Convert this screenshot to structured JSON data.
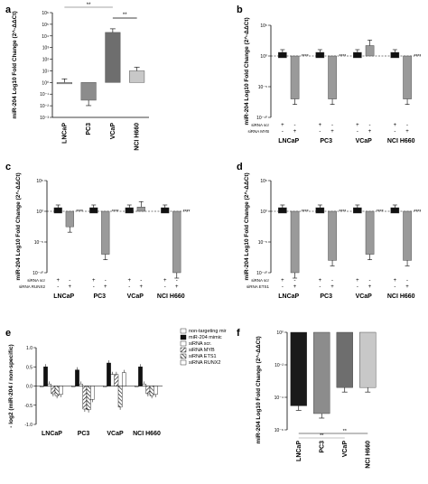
{
  "chart_data": [
    {
      "panel": "a",
      "type": "bar",
      "ylabel": "miR-204 Log10 Fold Change (2^-ΔΔCt)",
      "yscale": "log",
      "ylim": [
        0.001,
        1000000
      ],
      "yticks": [
        "10⁻³",
        "10⁻²",
        "10⁻¹",
        "10⁰",
        "10¹",
        "10²",
        "10³",
        "10⁴",
        "10⁵",
        "10⁶"
      ],
      "categories": [
        "LNCaP",
        "PC3",
        "VCaP",
        "NCI H660"
      ],
      "values": [
        1,
        0.03,
        20000,
        10
      ],
      "bar_colors": [
        "#b0b0b0",
        "#8c8c8c",
        "#6e6e6e",
        "#c8c8c8"
      ],
      "significance": [
        "**",
        "**"
      ]
    },
    {
      "panel": "b",
      "type": "bar",
      "ylabel": "miR-204 Log10 Fold Change (2^-ΔΔCt)",
      "yscale": "log",
      "yticks": [
        "10⁵",
        "10⁰",
        "10⁻⁵",
        "10⁻¹⁰"
      ],
      "categories": [
        "LNCaP",
        "PC3",
        "VCaP",
        "NCI H660"
      ],
      "row_labels": [
        "siRNA scr",
        "siRNA MYB"
      ],
      "series": [
        {
          "name": "siRNA scr",
          "values": [
            1,
            1,
            1,
            1
          ]
        },
        {
          "name": "siRNA MYB",
          "values": [
            1e-07,
            1e-07,
            50,
            1e-07
          ]
        }
      ],
      "stars": [
        "****",
        "****",
        "",
        "****"
      ]
    },
    {
      "panel": "c",
      "type": "bar",
      "ylabel": "miR-204 Log10 Fold Change (2^-ΔΔCt)",
      "yscale": "log",
      "yticks": [
        "10⁵",
        "10⁰",
        "10⁻⁵",
        "10⁻¹⁰"
      ],
      "categories": [
        "LNCaP",
        "PC3",
        "VCaP",
        "NCI H660"
      ],
      "row_labels": [
        "siRNA scr",
        "siRNA RUNX2"
      ],
      "series": [
        {
          "name": "siRNA scr",
          "values": [
            1,
            1,
            1,
            1
          ]
        },
        {
          "name": "siRNA RUNX2",
          "values": [
            0.003,
            1e-07,
            5,
            1e-10
          ]
        }
      ],
      "stars": [
        "****",
        "****",
        "",
        "****"
      ]
    },
    {
      "panel": "d",
      "type": "bar",
      "ylabel": "miR-204 Log10 Fold Change (2^-ΔΔCt)",
      "yscale": "log",
      "yticks": [
        "10⁵",
        "10⁰",
        "10⁻⁵",
        "10⁻¹⁰"
      ],
      "categories": [
        "LNCaP",
        "PC3",
        "VCaP",
        "NCI H660"
      ],
      "row_labels": [
        "siRNA scr",
        "siRNA ETS1"
      ],
      "series": [
        {
          "name": "siRNA scr",
          "values": [
            1,
            1,
            1,
            1
          ]
        },
        {
          "name": "siRNA ETS1",
          "values": [
            1e-10,
            1e-08,
            1e-07,
            1e-08
          ]
        }
      ],
      "stars": [
        "****",
        "****",
        "****",
        "****"
      ]
    },
    {
      "panel": "e",
      "type": "bar",
      "ylabel": "- log2 (miR-204 / non-specific)",
      "ylim": [
        -1.0,
        1.0
      ],
      "yticks": [
        "1.0",
        "0.5",
        "0.0",
        "-0.5",
        "-1.0"
      ],
      "categories": [
        "LNCaP",
        "PC3",
        "VCaP",
        "NCI H660"
      ],
      "legend": "top-right",
      "series": [
        {
          "name": "non-targeting mir",
          "values": [
            0.0,
            0.0,
            0.0,
            0.0
          ]
        },
        {
          "name": "miR-204 mimic",
          "values": [
            0.5,
            0.42,
            0.6,
            0.5
          ]
        },
        {
          "name": "siRNA scr.",
          "values": [
            0.05,
            0.05,
            0.3,
            0.05
          ]
        },
        {
          "name": "siRNA MYB",
          "values": [
            -0.2,
            -0.6,
            0.3,
            -0.2
          ]
        },
        {
          "name": "siRNA ETS1",
          "values": [
            -0.25,
            -0.62,
            -0.55,
            -0.25
          ]
        },
        {
          "name": "siRNA RUNX2",
          "values": [
            -0.22,
            -0.35,
            0.35,
            -0.22
          ]
        }
      ]
    },
    {
      "panel": "f",
      "type": "bar",
      "ylabel": "miR-204 Log10 Fold Change (2^-ΔΔCt)",
      "yscale": "log",
      "ylim": [
        1e-06,
        1
      ],
      "yticks": [
        "10⁰",
        "10⁻²",
        "10⁻⁴",
        "10⁻⁶"
      ],
      "categories": [
        "LNCaP",
        "PC3",
        "VCaP",
        "NCI H660"
      ],
      "values": [
        3e-05,
        1e-05,
        0.0004,
        0.0004
      ],
      "bar_colors": [
        "#1a1a1a",
        "#8c8c8c",
        "#6e6e6e",
        "#c8c8c8"
      ],
      "significance": [
        "**",
        "**"
      ]
    }
  ]
}
